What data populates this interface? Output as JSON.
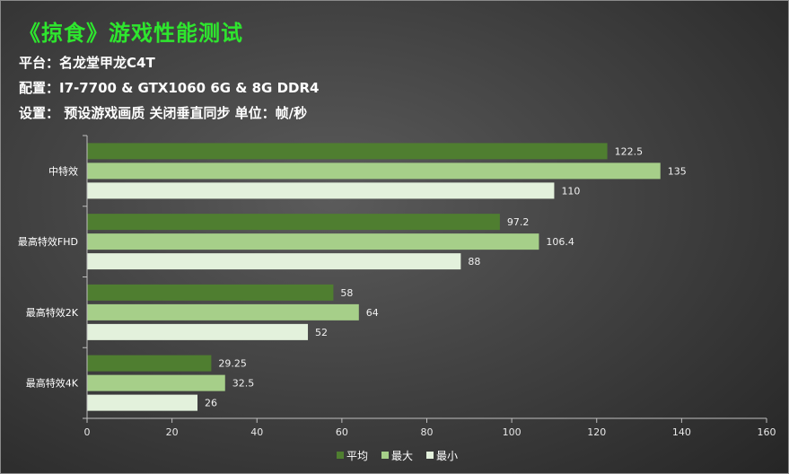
{
  "header": {
    "title": "《掠食》游戏性能测试",
    "platform": "平台：名龙堂甲龙C4T",
    "config": "配置：I7-7700 & GTX1060 6G & 8G DDR4",
    "settings": "设置： 预设游戏画质 关闭垂直同步  单位：帧/秒"
  },
  "colors": {
    "平均": "#4f7e30",
    "最大": "#a6cf89",
    "最小": "#e3f1dc"
  },
  "chart_data": {
    "type": "bar",
    "orientation": "horizontal",
    "categories": [
      "中特效",
      "最高特效FHD",
      "最高特效2K",
      "最高特效4K"
    ],
    "series": [
      {
        "name": "平均",
        "values": [
          122.5,
          97.2,
          58,
          29.25
        ],
        "labels": [
          "122.5",
          "97.2",
          "58",
          "29.25"
        ]
      },
      {
        "name": "最大",
        "values": [
          135,
          106.4,
          64,
          32.5
        ],
        "labels": [
          "135",
          "106.4",
          "64",
          "32.5"
        ]
      },
      {
        "name": "最小",
        "values": [
          110,
          88,
          52,
          26
        ],
        "labels": [
          "110",
          "88",
          "52",
          "26"
        ]
      }
    ],
    "xlim": [
      0,
      160
    ],
    "xticks": [
      "0",
      "20",
      "40",
      "60",
      "80",
      "100",
      "120",
      "140",
      "160"
    ],
    "grid": false,
    "legend": "bottom"
  }
}
